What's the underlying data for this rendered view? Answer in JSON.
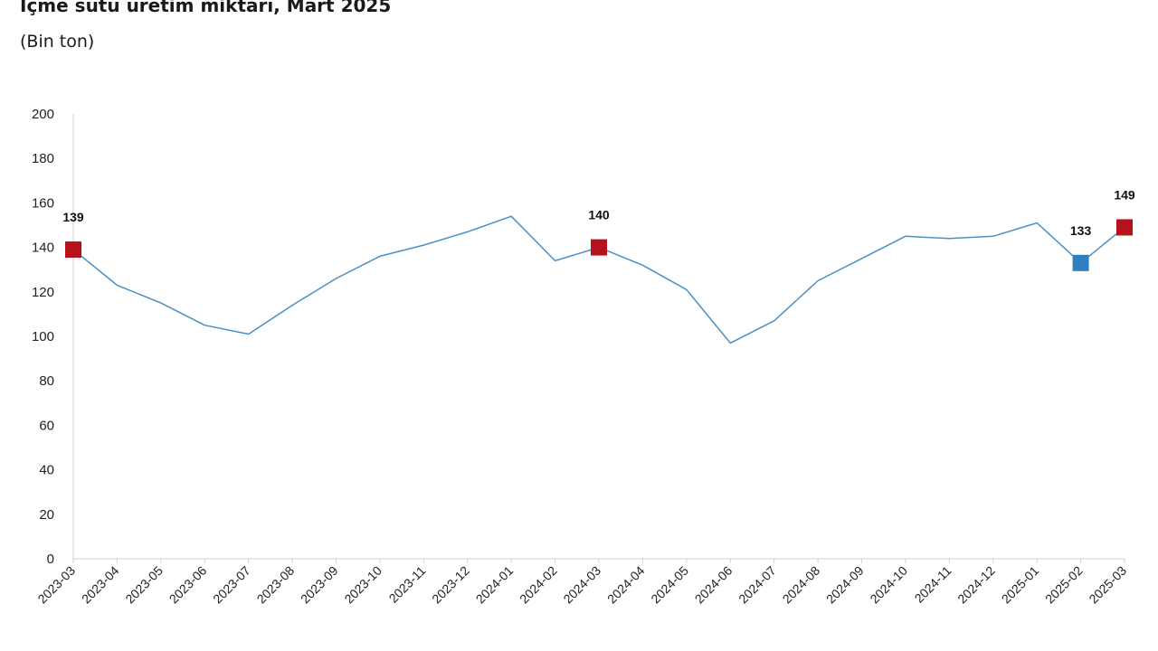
{
  "title": "İçme sütü üretim miktarı, Mart 2025",
  "subtitle": "(Bin ton)",
  "colors": {
    "line": "#4a90c4",
    "highlight_red": "#b5121b",
    "highlight_blue": "#2f7fc1",
    "axis": "#d0d0d0"
  },
  "chart_data": {
    "type": "line",
    "title": "İçme sütü üretim miktarı, Mart 2025",
    "subtitle": "(Bin ton)",
    "xlabel": "",
    "ylabel": "",
    "ylim": [
      0,
      200
    ],
    "yticks": [
      0,
      20,
      40,
      60,
      80,
      100,
      120,
      140,
      160,
      180,
      200
    ],
    "grid": false,
    "categories": [
      "2023-03",
      "2023-04",
      "2023-05",
      "2023-06",
      "2023-07",
      "2023-08",
      "2023-09",
      "2023-10",
      "2023-11",
      "2023-12",
      "2024-01",
      "2024-02",
      "2024-03",
      "2024-04",
      "2024-05",
      "2024-06",
      "2024-07",
      "2024-08",
      "2024-09",
      "2024-10",
      "2024-11",
      "2024-12",
      "2025-01",
      "2025-02",
      "2025-03"
    ],
    "series": [
      {
        "values": [
          139,
          123,
          115,
          105,
          101,
          114,
          126,
          136,
          141,
          147,
          154,
          134,
          140,
          132,
          121,
          97,
          107,
          125,
          135,
          145,
          144,
          145,
          151,
          133,
          149
        ]
      }
    ],
    "highlights": [
      {
        "category": "2023-03",
        "value": 139,
        "label": "139",
        "color": "red"
      },
      {
        "category": "2024-03",
        "value": 140,
        "label": "140",
        "color": "red"
      },
      {
        "category": "2025-02",
        "value": 133,
        "label": "133",
        "color": "blue"
      },
      {
        "category": "2025-03",
        "value": 149,
        "label": "149",
        "color": "red"
      }
    ]
  }
}
